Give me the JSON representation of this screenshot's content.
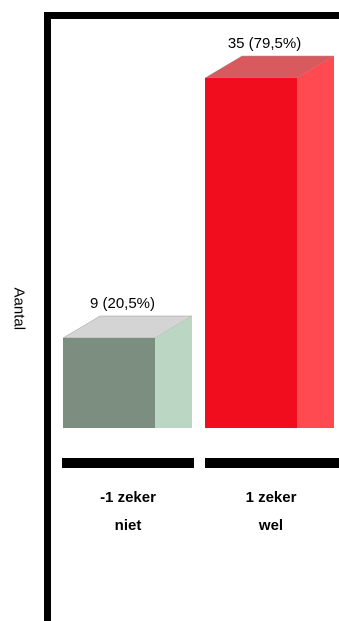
{
  "chart_data": {
    "type": "bar",
    "title": "",
    "xlabel": "",
    "ylabel": "Aantal",
    "ylim": [
      0,
      35
    ],
    "categories": [
      "-1 zeker niet",
      "1 zeker wel"
    ],
    "category_lines": [
      [
        "-1 zeker",
        "niet"
      ],
      [
        "1 zeker",
        "wel"
      ]
    ],
    "values": [
      9,
      35
    ],
    "data_labels": [
      "9 (20,5%)",
      "35 (79,5%)"
    ],
    "colors": [
      {
        "front": "#7b8e80",
        "side": "#bcd6c4",
        "top": "#d4d4d4"
      },
      {
        "front": "#f20d1e",
        "side": "#ff4a52",
        "top": "#d95a5e"
      }
    ],
    "grid": false,
    "legend": "none"
  }
}
